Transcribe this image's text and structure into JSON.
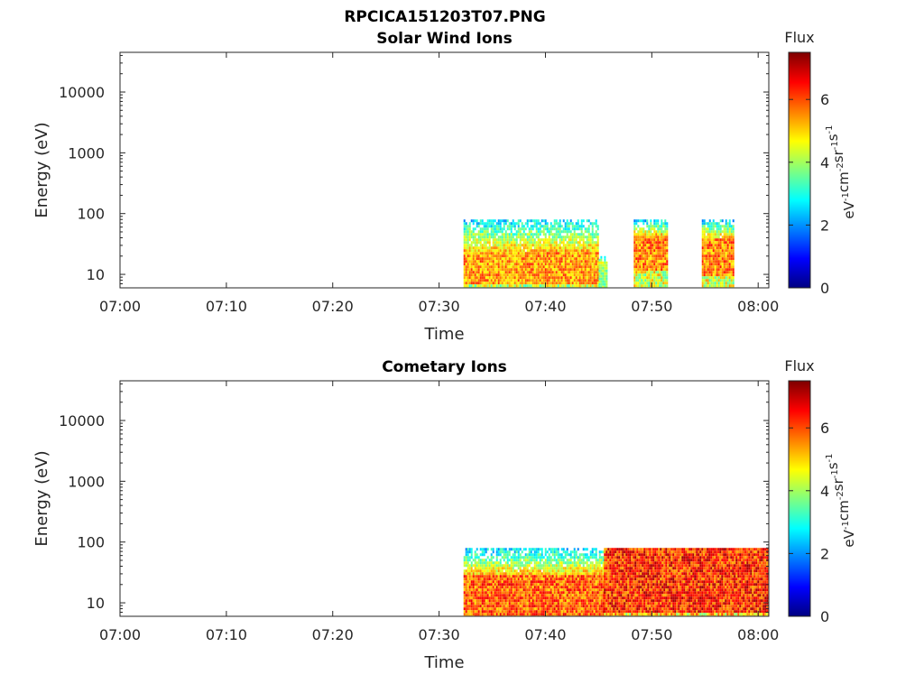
{
  "figure": {
    "title_line1": "RPCICA151203T07.PNG"
  },
  "chart_data": [
    {
      "type": "heatmap",
      "title": "Solar Wind Ions",
      "xlabel": "Time",
      "ylabel": "Energy (eV)",
      "x_ticks": [
        "07:00",
        "07:10",
        "07:20",
        "07:30",
        "07:40",
        "07:50",
        "08:00"
      ],
      "y_ticks": [
        "10",
        "100",
        "1000",
        "10000"
      ],
      "y_scale": "log",
      "x_range": [
        "07:00",
        "08:01"
      ],
      "y_range_eV": [
        6,
        45000
      ],
      "colorbar": {
        "title": "Flux",
        "label": "eV-1cm-2sr-1s-1",
        "ticks": [
          "0",
          "2",
          "4",
          "6"
        ],
        "range": [
          0,
          7.5
        ],
        "colormap": "jet"
      },
      "segments": [
        {
          "start": "07:32.3",
          "end": "07:45.0",
          "energy_eV": [
            6,
            80
          ],
          "core_energy_eV": [
            7,
            25
          ],
          "peak_flux": 6.3
        },
        {
          "start": "07:45.0",
          "end": "07:45.8",
          "energy_eV": [
            6,
            20
          ],
          "core_energy_eV": [
            6,
            15
          ],
          "peak_flux": 4.5
        },
        {
          "start": "07:48.3",
          "end": "07:51.5",
          "energy_eV": [
            6,
            80
          ],
          "core_energy_eV": [
            12,
            45
          ],
          "peak_flux": 6.5
        },
        {
          "start": "07:54.7",
          "end": "07:57.6",
          "energy_eV": [
            6,
            80
          ],
          "core_energy_eV": [
            10,
            40
          ],
          "peak_flux": 6.5
        }
      ]
    },
    {
      "type": "heatmap",
      "title": "Cometary Ions",
      "xlabel": "Time",
      "ylabel": "Energy (eV)",
      "x_ticks": [
        "07:00",
        "07:10",
        "07:20",
        "07:30",
        "07:40",
        "07:50",
        "08:00"
      ],
      "y_ticks": [
        "10",
        "100",
        "1000",
        "10000"
      ],
      "y_scale": "log",
      "x_range": [
        "07:00",
        "08:01"
      ],
      "y_range_eV": [
        6,
        45000
      ],
      "colorbar": {
        "title": "Flux",
        "label": "eV-1cm-2sr-1s-1",
        "ticks": [
          "0",
          "2",
          "4",
          "6"
        ],
        "range": [
          0,
          7.5
        ],
        "colormap": "jet"
      },
      "segments": [
        {
          "start": "07:32.3",
          "end": "07:45.5",
          "energy_eV": [
            6,
            80
          ],
          "core_energy_eV": [
            6,
            30
          ],
          "peak_flux": 6.8
        },
        {
          "start": "07:45.5",
          "end": "08:01.0",
          "energy_eV": [
            6,
            80
          ],
          "core_energy_eV": [
            7,
            80
          ],
          "peak_flux": 7.3
        }
      ]
    }
  ]
}
